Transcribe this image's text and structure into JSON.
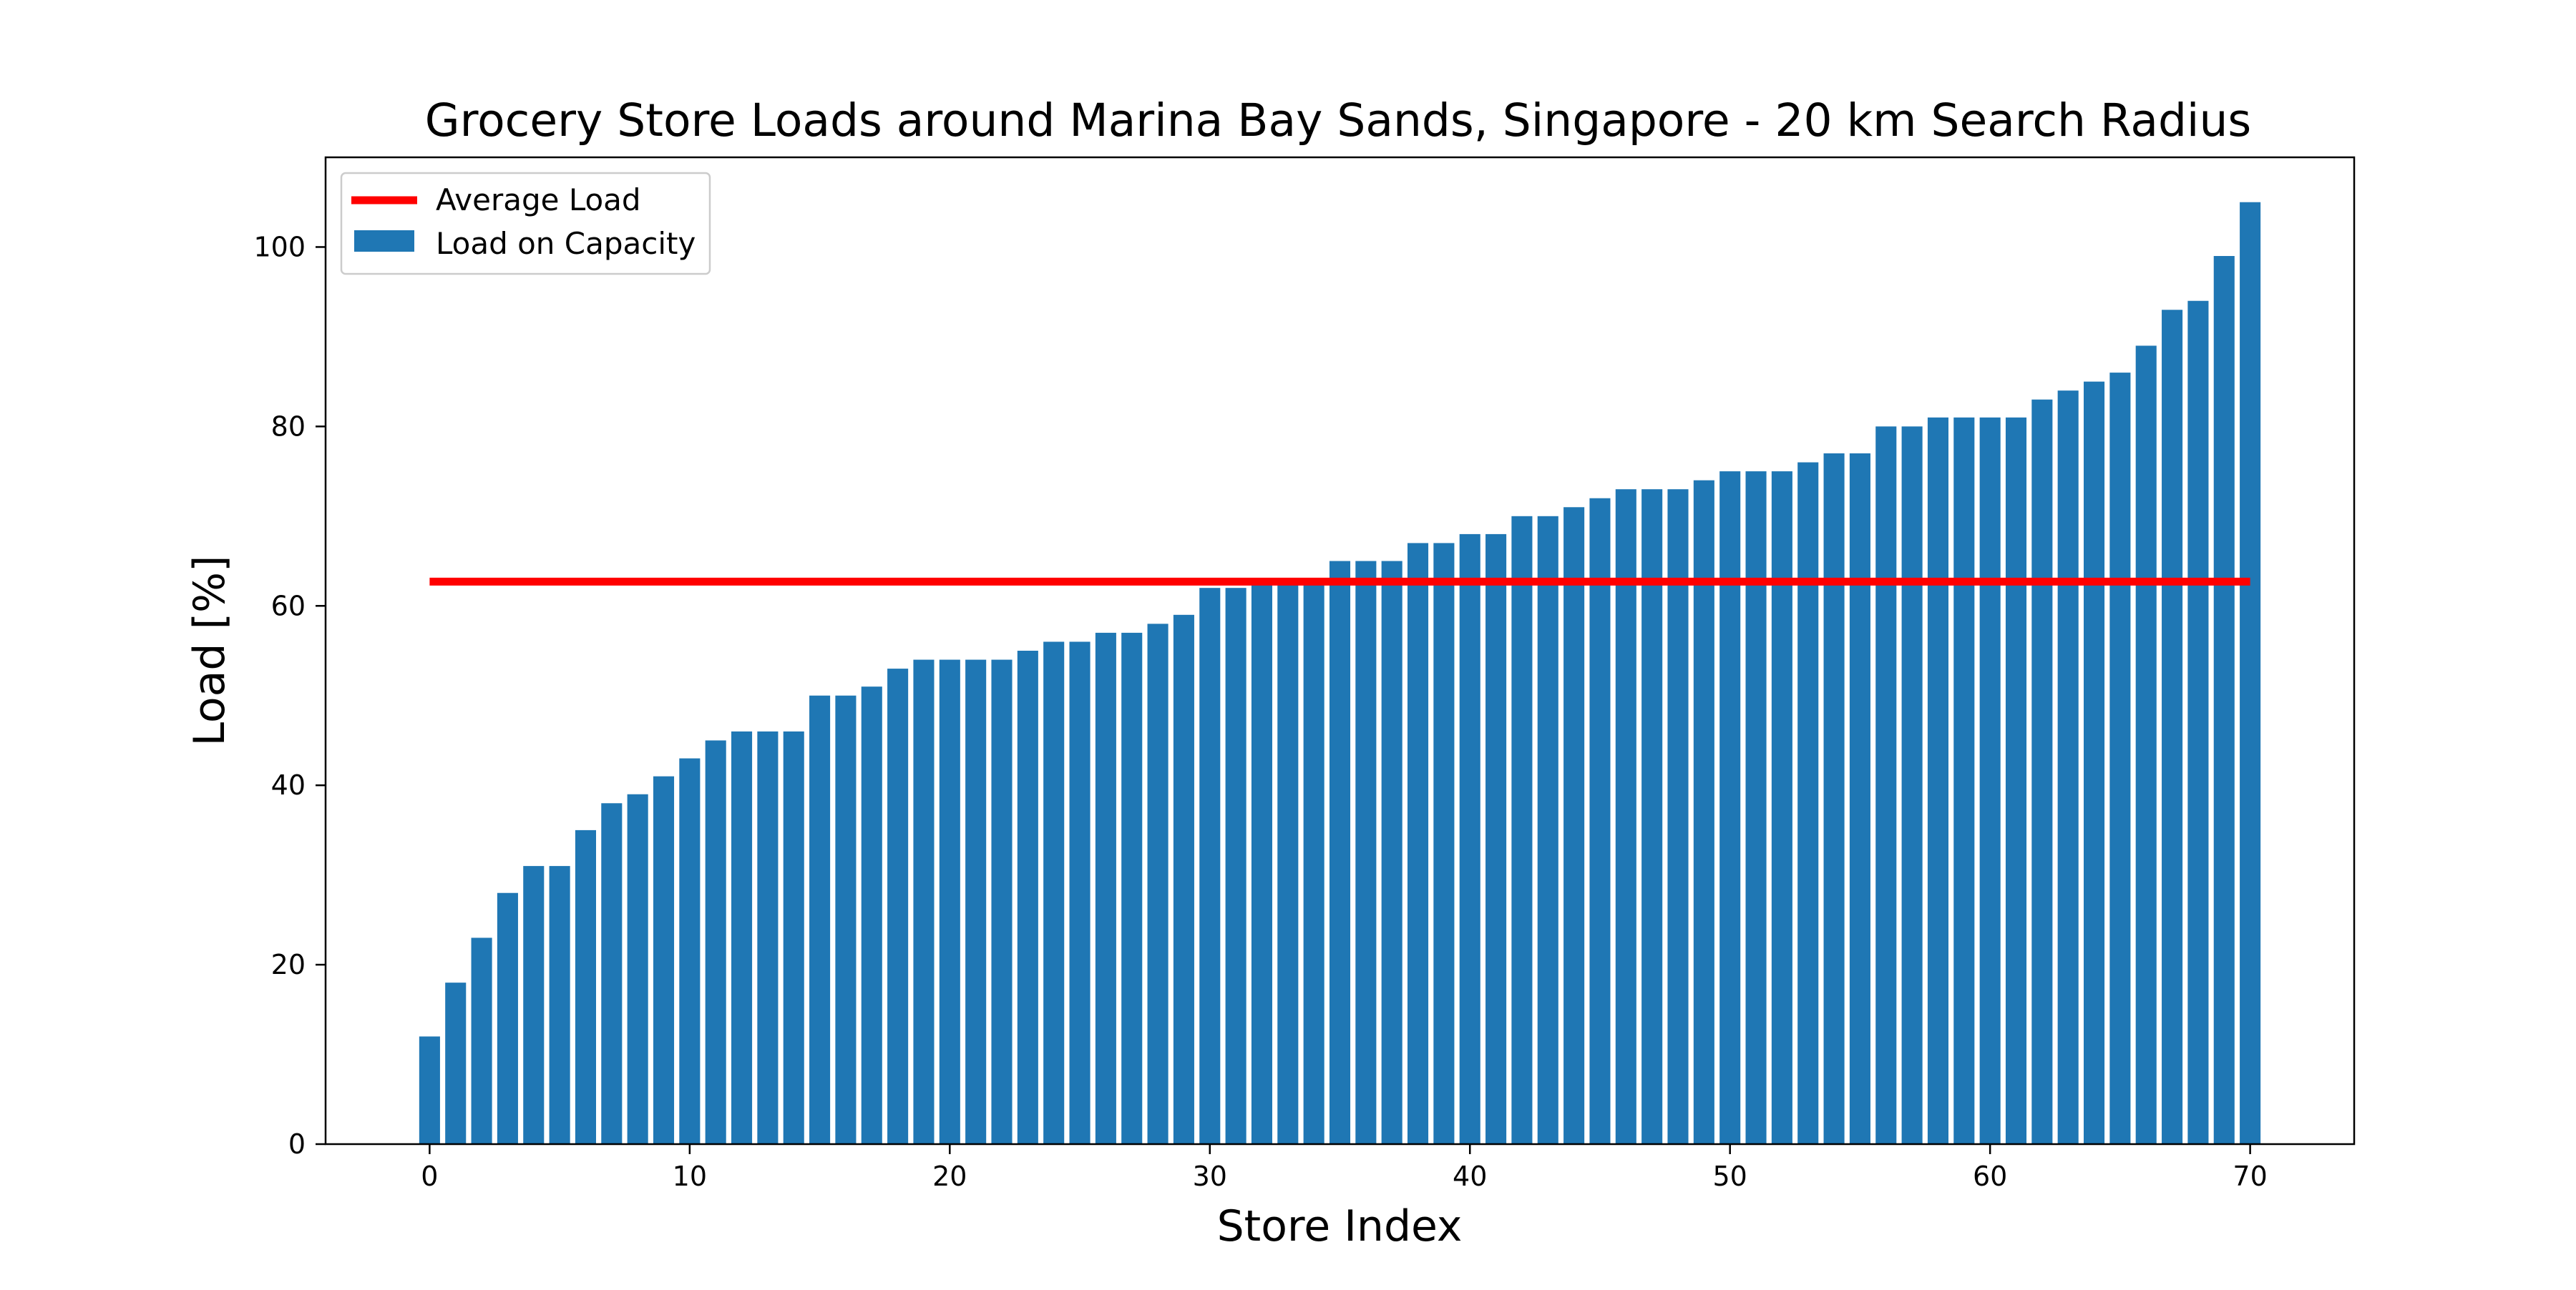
{
  "chart_data": {
    "type": "bar",
    "title": "Grocery Store Loads around Marina Bay Sands, Singapore - 20 km Search Radius",
    "xlabel": "Store Index",
    "ylabel": "Load [%]",
    "xlim": [
      -4,
      74
    ],
    "ylim": [
      0,
      110
    ],
    "x_ticks": [
      0,
      10,
      20,
      30,
      40,
      50,
      60,
      70
    ],
    "y_ticks": [
      0,
      20,
      40,
      60,
      80,
      100
    ],
    "grid": false,
    "legend_position": "top-left",
    "series": [
      {
        "name": "Load on Capacity",
        "kind": "bar",
        "color": "#1f77b4",
        "x": [
          0,
          1,
          2,
          3,
          4,
          5,
          6,
          7,
          8,
          9,
          10,
          11,
          12,
          13,
          14,
          15,
          16,
          17,
          18,
          19,
          20,
          21,
          22,
          23,
          24,
          25,
          26,
          27,
          28,
          29,
          30,
          31,
          32,
          33,
          34,
          35,
          36,
          37,
          38,
          39,
          40,
          41,
          42,
          43,
          44,
          45,
          46,
          47,
          48,
          49,
          50,
          51,
          52,
          53,
          54,
          55,
          56,
          57,
          58,
          59,
          60,
          61,
          62,
          63,
          64,
          65,
          66,
          67,
          68,
          69,
          70
        ],
        "values": [
          12,
          18,
          23,
          28,
          31,
          31,
          35,
          38,
          39,
          41,
          43,
          45,
          46,
          46,
          46,
          50,
          50,
          51,
          53,
          54,
          54,
          54,
          54,
          55,
          56,
          56,
          57,
          57,
          58,
          59,
          62,
          62,
          63,
          63,
          63,
          65,
          65,
          65,
          67,
          67,
          68,
          68,
          70,
          70,
          71,
          72,
          73,
          73,
          73,
          74,
          75,
          75,
          75,
          76,
          77,
          77,
          80,
          80,
          81,
          81,
          81,
          81,
          83,
          84,
          85,
          86,
          89,
          93,
          94,
          99,
          105
        ]
      },
      {
        "name": "Average Load",
        "kind": "line",
        "color": "#ff0000",
        "x": [
          0,
          70
        ],
        "values": [
          62.7,
          62.7
        ]
      }
    ]
  }
}
